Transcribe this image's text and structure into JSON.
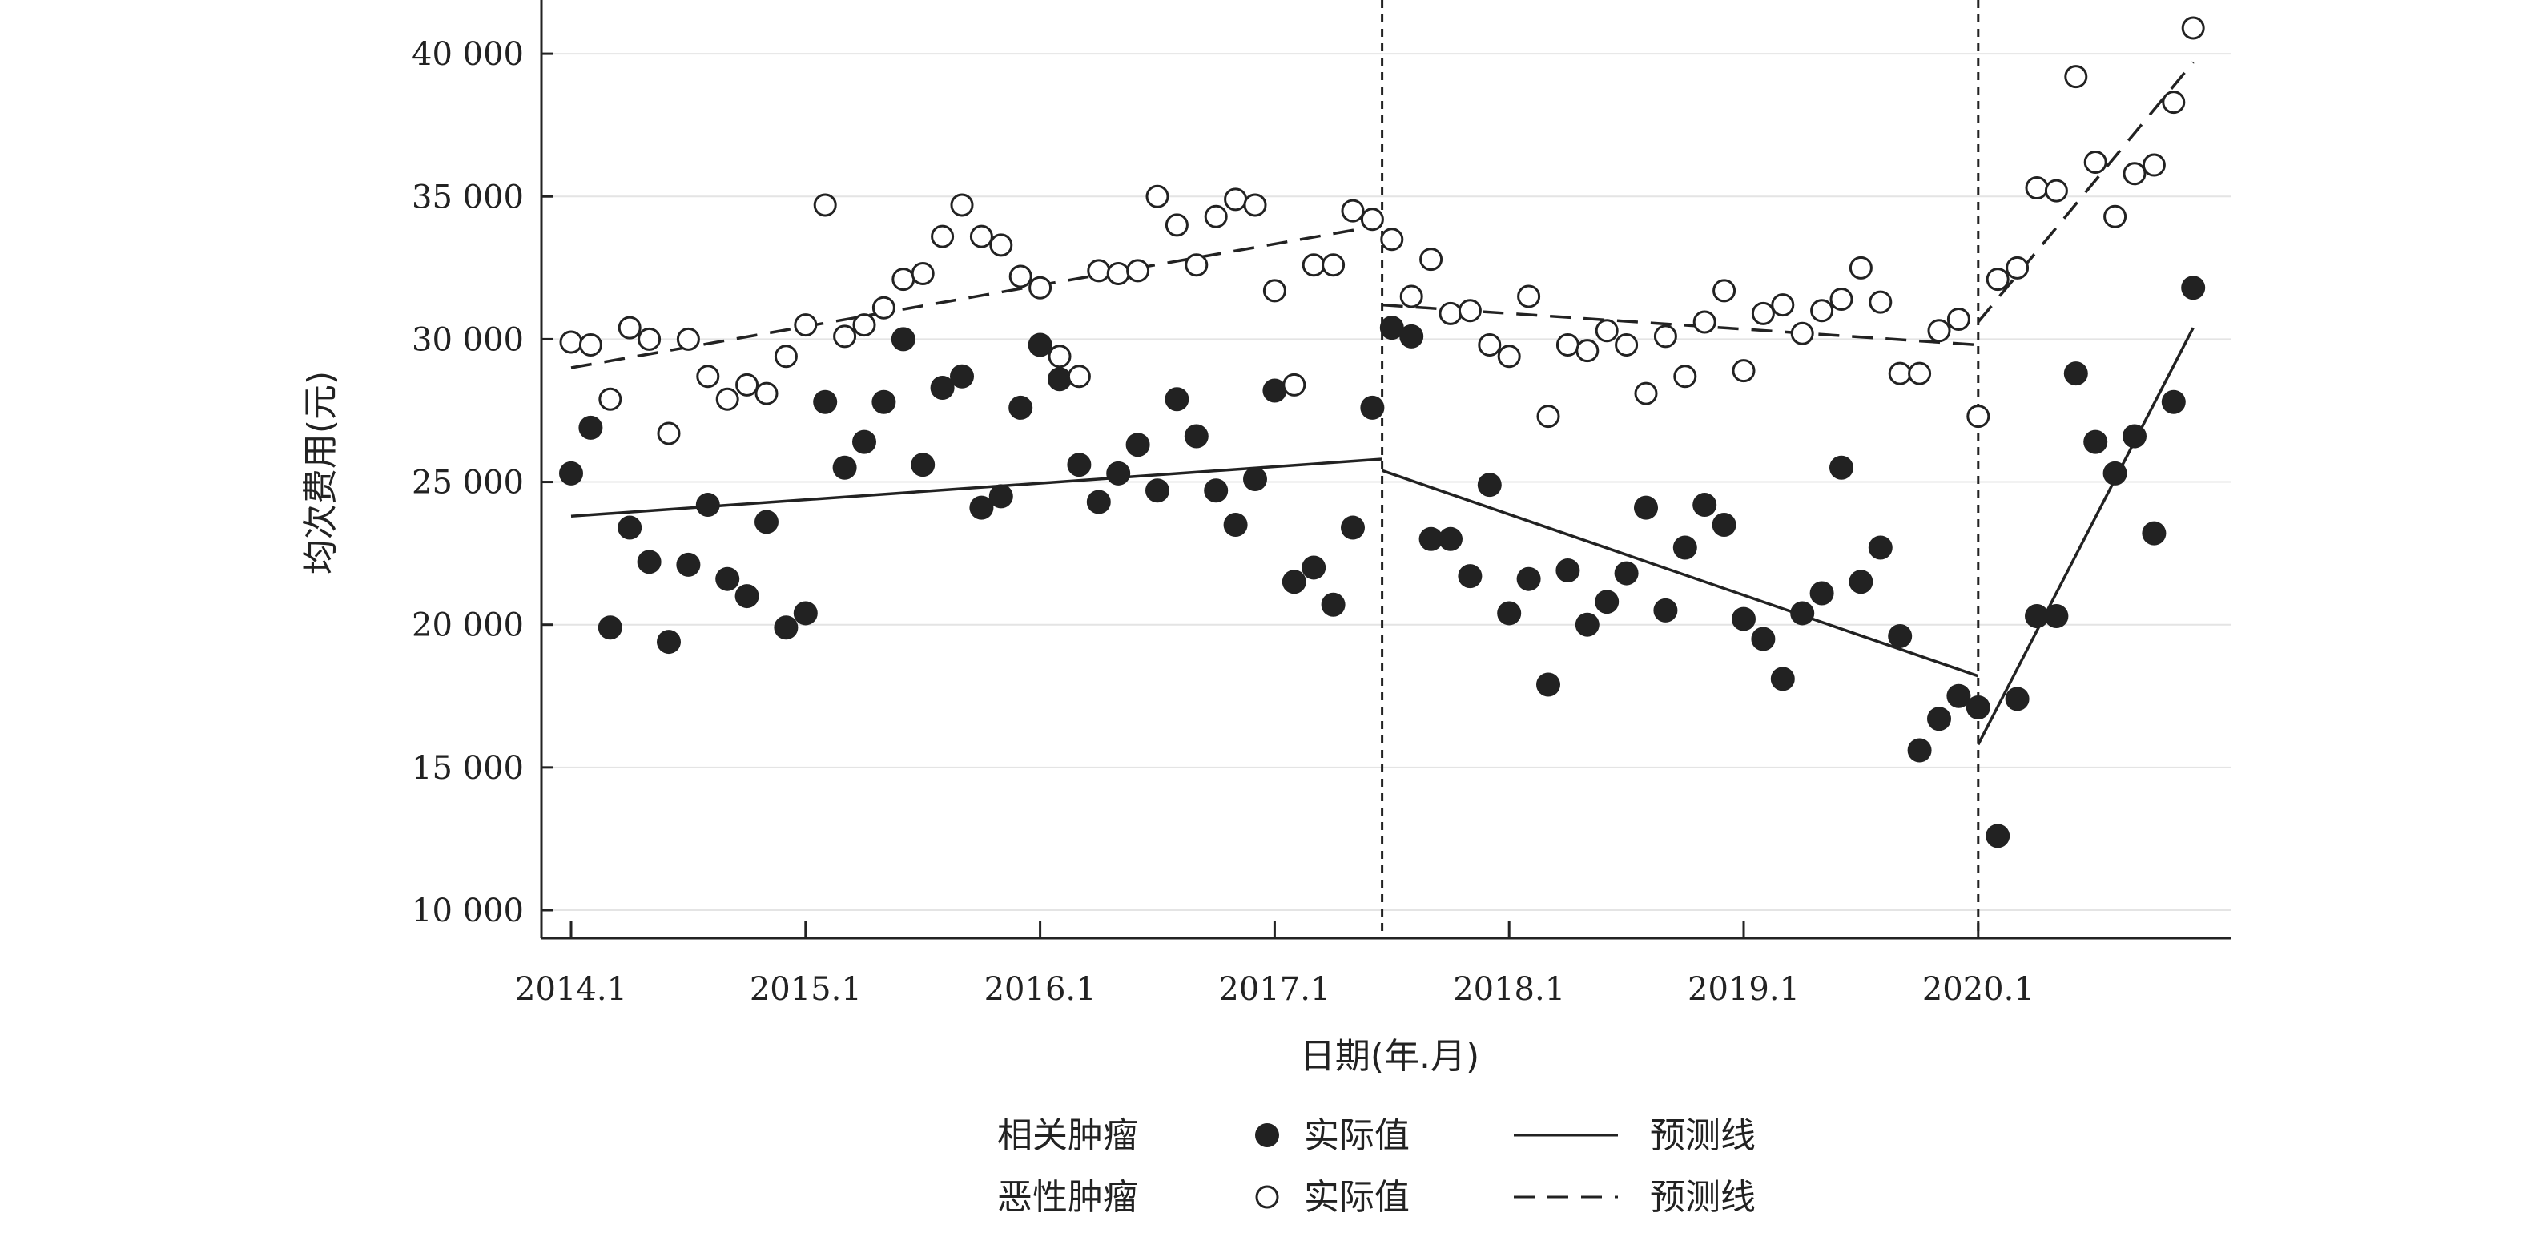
{
  "chart_data": {
    "type": "scatter",
    "title": "",
    "xlabel": "日期(年.月)",
    "ylabel": "均次费用(元)",
    "x_tick_labels": [
      "2014.1",
      "2015.1",
      "2016.1",
      "2017.1",
      "2018.1",
      "2019.1",
      "2020.1"
    ],
    "y_tick_labels": [
      "10 000",
      "15 000",
      "20 000",
      "25 000",
      "30 000",
      "35 000",
      "40 000"
    ],
    "y_ticks": [
      10000,
      15000,
      20000,
      25000,
      30000,
      35000,
      40000
    ],
    "ylim": [
      9000,
      41500
    ],
    "xlim": [
      -0.5,
      83.5
    ],
    "x_unit": "month index (0 = 2014.1)",
    "vertical_reference_lines": [
      41.5,
      72
    ],
    "grid": "horizontal",
    "legend": {
      "position": "bottom",
      "group_labels": [
        "相关肿瘤",
        "恶性肿瘤"
      ],
      "actual_label": "实际值",
      "fit_label": "预测线"
    },
    "series": [
      {
        "name": "相关肿瘤 实际值",
        "marker": "filled-circle",
        "values": [
          25300,
          26900,
          19900,
          23400,
          22200,
          19400,
          22100,
          24200,
          21600,
          21000,
          23600,
          19900,
          20400,
          27800,
          25500,
          26400,
          27800,
          30000,
          25600,
          28300,
          28700,
          24100,
          24500,
          27600,
          29800,
          28600,
          25600,
          24300,
          25300,
          26300,
          24700,
          27900,
          26600,
          24700,
          23500,
          25100,
          28200,
          21500,
          22000,
          20700,
          23400,
          27600,
          30400,
          30100,
          23000,
          23000,
          21700,
          24900,
          20400,
          21600,
          17900,
          21900,
          20000,
          20800,
          21800,
          24100,
          20500,
          22700,
          24200,
          23500,
          20200,
          19500,
          18100,
          20400,
          21100,
          25500,
          21500,
          22700,
          19600,
          15600,
          16700,
          17500,
          17100,
          12600,
          17400,
          20300,
          20300,
          28800,
          26400,
          25300,
          26600,
          23200,
          27800,
          31800
        ]
      },
      {
        "name": "恶性肿瘤 实际值",
        "marker": "open-circle",
        "values": [
          29900,
          29800,
          27900,
          30400,
          30000,
          26700,
          30000,
          28700,
          27900,
          28400,
          28100,
          29400,
          30500,
          34700,
          30100,
          30500,
          31100,
          32100,
          32300,
          33600,
          34700,
          33600,
          33300,
          32200,
          31800,
          29400,
          28700,
          32400,
          32300,
          32400,
          35000,
          34000,
          32600,
          34300,
          34900,
          34700,
          31700,
          28400,
          32600,
          32600,
          34500,
          34200,
          33500,
          31500,
          32800,
          30900,
          31000,
          29800,
          29400,
          31500,
          27300,
          29800,
          29600,
          30300,
          29800,
          28100,
          30100,
          28700,
          30600,
          31700,
          28900,
          30900,
          31200,
          30200,
          31000,
          31400,
          32500,
          31300,
          28800,
          28800,
          30300,
          30700,
          27300,
          32100,
          32500,
          35300,
          35200,
          39200,
          36200,
          34300,
          35800,
          36100,
          38300,
          40900
        ]
      },
      {
        "name": "相关肿瘤 预测线",
        "style": "solid",
        "segments": [
          {
            "x": [
              0,
              41.5
            ],
            "y": [
              23800,
              25800
            ]
          },
          {
            "x": [
              41.5,
              72
            ],
            "y": [
              25400,
              18200
            ]
          },
          {
            "x": [
              72,
              83
            ],
            "y": [
              15800,
              30400
            ]
          }
        ]
      },
      {
        "name": "恶性肿瘤 预测线",
        "style": "dashed",
        "segments": [
          {
            "x": [
              0,
              41.5
            ],
            "y": [
              29000,
              34000
            ]
          },
          {
            "x": [
              41.5,
              72
            ],
            "y": [
              31200,
              29800
            ]
          },
          {
            "x": [
              72,
              83
            ],
            "y": [
              30600,
              39700
            ]
          }
        ]
      }
    ]
  }
}
